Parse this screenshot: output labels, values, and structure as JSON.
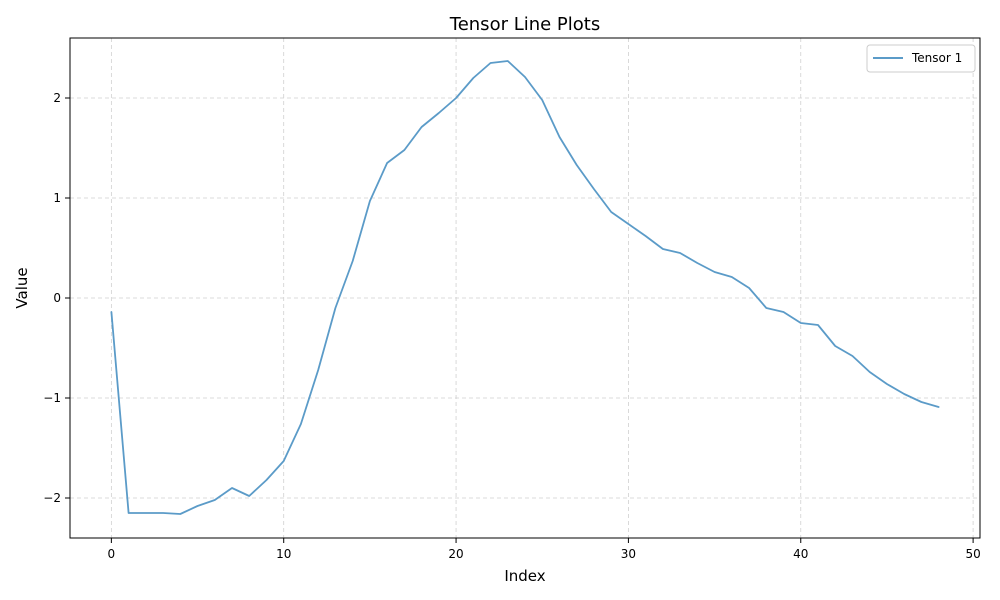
{
  "chart_data": {
    "type": "line",
    "title": "Tensor Line Plots",
    "xlabel": "Index",
    "ylabel": "Value",
    "xlim": [
      -2.4,
      50.4
    ],
    "ylim": [
      -2.4,
      2.6
    ],
    "x_ticks": [
      0,
      10,
      20,
      30,
      40,
      50
    ],
    "y_ticks": [
      -2,
      -1,
      0,
      1,
      2
    ],
    "x_tick_labels": [
      "0",
      "10",
      "20",
      "30",
      "40",
      "50"
    ],
    "y_tick_labels": [
      "−2",
      "−1",
      "0",
      "1",
      "2"
    ],
    "grid": true,
    "legend_position": "top-right",
    "series": [
      {
        "name": "Tensor 1",
        "color": "#5b9bc8",
        "x": [
          0,
          1,
          2,
          3,
          4,
          5,
          6,
          7,
          8,
          9,
          10,
          11,
          12,
          13,
          14,
          15,
          16,
          17,
          18,
          19,
          20,
          21,
          22,
          23,
          24,
          25,
          26,
          27,
          28,
          29,
          30,
          31,
          32,
          33,
          34,
          35,
          36,
          37,
          38,
          39,
          40,
          41,
          42,
          43,
          44,
          45,
          46,
          47,
          48
        ],
        "values": [
          -0.14,
          -2.15,
          -2.15,
          -2.15,
          -2.16,
          -2.08,
          -2.02,
          -1.9,
          -1.98,
          -1.82,
          -1.63,
          -1.26,
          -0.72,
          -0.1,
          0.37,
          0.97,
          1.35,
          1.48,
          1.71,
          1.85,
          2.0,
          2.2,
          2.35,
          2.37,
          2.21,
          1.98,
          1.61,
          1.33,
          1.09,
          0.86,
          0.74,
          0.62,
          0.49,
          0.45,
          0.35,
          0.26,
          0.21,
          0.1,
          -0.1,
          -0.14,
          -0.25,
          -0.27,
          -0.48,
          -0.58,
          -0.74,
          -0.86,
          -0.96,
          -1.04,
          -1.09
        ]
      }
    ]
  }
}
